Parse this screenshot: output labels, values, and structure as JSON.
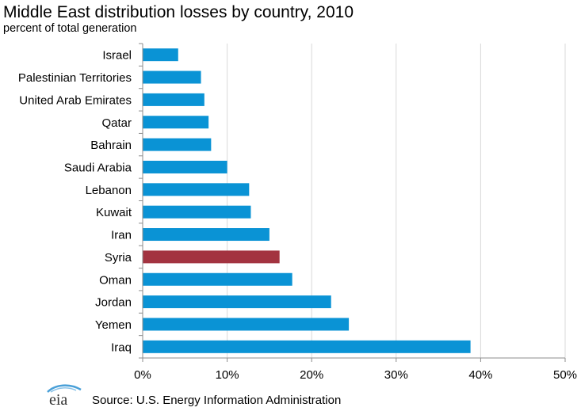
{
  "header": {
    "title": "Middle East distribution  losses by country, 2010",
    "subtitle": "percent of total generation"
  },
  "footer": {
    "logo_text": "eia",
    "source": "Source: U.S. Energy Information Administration"
  },
  "colors": {
    "bar": "#0a93d5",
    "highlight": "#a33340",
    "grid": "#d9d9d9",
    "axis": "#8c8c8c",
    "logo_swoosh": "#4aa0d8"
  },
  "chart_data": {
    "type": "bar",
    "orientation": "horizontal",
    "categories": [
      "Israel",
      "Palestinian Territories",
      "United Arab Emirates",
      "Qatar",
      "Bahrain",
      "Saudi Arabia",
      "Lebanon",
      "Kuwait",
      "Iran",
      "Syria",
      "Oman",
      "Jordan",
      "Yemen",
      "Iraq"
    ],
    "values": [
      4.2,
      6.9,
      7.3,
      7.8,
      8.1,
      10.0,
      12.6,
      12.8,
      15.0,
      16.2,
      17.7,
      22.3,
      24.4,
      38.8
    ],
    "highlight": "Syria",
    "xlim": [
      0,
      50
    ],
    "xticks": [
      "0%",
      "10%",
      "20%",
      "30%",
      "40%",
      "50%"
    ],
    "xtick_values": [
      0,
      10,
      20,
      30,
      40,
      50
    ],
    "grid": true,
    "xlabel": "",
    "ylabel": ""
  }
}
